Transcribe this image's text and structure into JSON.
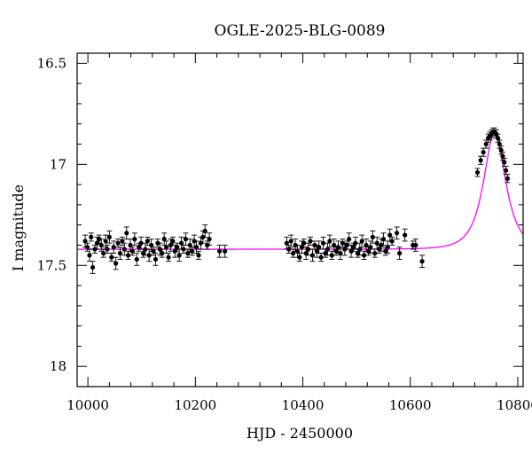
{
  "chart_data": {
    "type": "scatter",
    "title": "OGLE-2025-BLG-0089",
    "xlabel": "HJD - 2450000",
    "ylabel": "I magnitude",
    "xlim": [
      9980,
      10810
    ],
    "ylim": [
      18.1,
      16.45
    ],
    "y_inverted": true,
    "x_ticks": [
      10000,
      10200,
      10400,
      10600,
      10800
    ],
    "y_ticks": [
      16.5,
      17,
      17.5,
      18
    ],
    "y_tick_labels": [
      "16.5",
      "17",
      "17.5",
      "18"
    ],
    "x_minor_step": 40,
    "y_minor_step": 0.1,
    "grid": false,
    "model_color": "#ff00ff",
    "point_color": "#000000",
    "model": {
      "baseline": 17.42,
      "peak_mag": 16.84,
      "t0": 10757,
      "tE": 30
    },
    "series": [
      {
        "points": [
          [
            9995,
            17.38,
            0.03
          ],
          [
            9999,
            17.41,
            0.02
          ],
          [
            10003,
            17.45,
            0.03
          ],
          [
            10006,
            17.36,
            0.02
          ],
          [
            10009,
            17.51,
            0.03
          ],
          [
            10013,
            17.42,
            0.02
          ],
          [
            10017,
            17.39,
            0.03
          ],
          [
            10021,
            17.37,
            0.02
          ],
          [
            10025,
            17.4,
            0.03
          ],
          [
            10029,
            17.44,
            0.02
          ],
          [
            10033,
            17.38,
            0.03
          ],
          [
            10036,
            17.42,
            0.02
          ],
          [
            10040,
            17.36,
            0.03
          ],
          [
            10044,
            17.46,
            0.02
          ],
          [
            10048,
            17.41,
            0.03
          ],
          [
            10052,
            17.49,
            0.03
          ],
          [
            10056,
            17.39,
            0.02
          ],
          [
            10060,
            17.44,
            0.03
          ],
          [
            10064,
            17.38,
            0.02
          ],
          [
            10068,
            17.42,
            0.03
          ],
          [
            10072,
            17.34,
            0.03
          ],
          [
            10075,
            17.45,
            0.02
          ],
          [
            10079,
            17.4,
            0.03
          ],
          [
            10083,
            17.43,
            0.02
          ],
          [
            10087,
            17.37,
            0.03
          ],
          [
            10091,
            17.47,
            0.03
          ],
          [
            10095,
            17.41,
            0.02
          ],
          [
            10099,
            17.39,
            0.03
          ],
          [
            10103,
            17.44,
            0.02
          ],
          [
            10107,
            17.42,
            0.03
          ],
          [
            10111,
            17.38,
            0.02
          ],
          [
            10114,
            17.45,
            0.03
          ],
          [
            10118,
            17.4,
            0.03
          ],
          [
            10122,
            17.43,
            0.02
          ],
          [
            10126,
            17.47,
            0.03
          ],
          [
            10130,
            17.39,
            0.02
          ],
          [
            10134,
            17.42,
            0.03
          ],
          [
            10138,
            17.44,
            0.02
          ],
          [
            10142,
            17.37,
            0.03
          ],
          [
            10146,
            17.41,
            0.03
          ],
          [
            10150,
            17.46,
            0.02
          ],
          [
            10154,
            17.4,
            0.03
          ],
          [
            10158,
            17.38,
            0.02
          ],
          [
            10162,
            17.43,
            0.03
          ],
          [
            10166,
            17.41,
            0.02
          ],
          [
            10170,
            17.45,
            0.03
          ],
          [
            10174,
            17.39,
            0.03
          ],
          [
            10178,
            17.42,
            0.02
          ],
          [
            10182,
            17.37,
            0.03
          ],
          [
            10186,
            17.44,
            0.02
          ],
          [
            10190,
            17.4,
            0.03
          ],
          [
            10194,
            17.43,
            0.02
          ],
          [
            10198,
            17.38,
            0.03
          ],
          [
            10202,
            17.41,
            0.03
          ],
          [
            10206,
            17.45,
            0.02
          ],
          [
            10210,
            17.39,
            0.03
          ],
          [
            10214,
            17.36,
            0.03
          ],
          [
            10218,
            17.33,
            0.03
          ],
          [
            10222,
            17.4,
            0.02
          ],
          [
            10226,
            17.37,
            0.03
          ],
          [
            10245,
            17.43,
            0.03
          ],
          [
            10255,
            17.43,
            0.03
          ],
          [
            10370,
            17.39,
            0.03
          ],
          [
            10374,
            17.42,
            0.02
          ],
          [
            10378,
            17.38,
            0.03
          ],
          [
            10382,
            17.44,
            0.02
          ],
          [
            10386,
            17.4,
            0.03
          ],
          [
            10390,
            17.43,
            0.03
          ],
          [
            10394,
            17.46,
            0.02
          ],
          [
            10398,
            17.41,
            0.03
          ],
          [
            10402,
            17.39,
            0.02
          ],
          [
            10406,
            17.44,
            0.03
          ],
          [
            10410,
            17.42,
            0.03
          ],
          [
            10414,
            17.38,
            0.02
          ],
          [
            10418,
            17.45,
            0.03
          ],
          [
            10422,
            17.4,
            0.02
          ],
          [
            10426,
            17.43,
            0.03
          ],
          [
            10430,
            17.41,
            0.03
          ],
          [
            10434,
            17.46,
            0.02
          ],
          [
            10438,
            17.39,
            0.03
          ],
          [
            10442,
            17.44,
            0.02
          ],
          [
            10446,
            17.42,
            0.03
          ],
          [
            10450,
            17.38,
            0.03
          ],
          [
            10454,
            17.45,
            0.02
          ],
          [
            10458,
            17.4,
            0.03
          ],
          [
            10462,
            17.43,
            0.02
          ],
          [
            10466,
            17.41,
            0.03
          ],
          [
            10470,
            17.44,
            0.03
          ],
          [
            10474,
            17.39,
            0.02
          ],
          [
            10478,
            17.42,
            0.03
          ],
          [
            10482,
            17.4,
            0.02
          ],
          [
            10486,
            17.37,
            0.03
          ],
          [
            10490,
            17.43,
            0.03
          ],
          [
            10494,
            17.41,
            0.02
          ],
          [
            10498,
            17.39,
            0.03
          ],
          [
            10502,
            17.44,
            0.02
          ],
          [
            10506,
            17.42,
            0.03
          ],
          [
            10510,
            17.38,
            0.03
          ],
          [
            10514,
            17.45,
            0.02
          ],
          [
            10518,
            17.4,
            0.03
          ],
          [
            10522,
            17.43,
            0.02
          ],
          [
            10526,
            17.41,
            0.03
          ],
          [
            10530,
            17.36,
            0.03
          ],
          [
            10534,
            17.44,
            0.02
          ],
          [
            10538,
            17.39,
            0.03
          ],
          [
            10542,
            17.42,
            0.02
          ],
          [
            10546,
            17.4,
            0.03
          ],
          [
            10550,
            17.37,
            0.03
          ],
          [
            10554,
            17.43,
            0.02
          ],
          [
            10558,
            17.41,
            0.03
          ],
          [
            10562,
            17.35,
            0.03
          ],
          [
            10566,
            17.38,
            0.02
          ],
          [
            10575,
            17.34,
            0.03
          ],
          [
            10580,
            17.44,
            0.03
          ],
          [
            10590,
            17.35,
            0.03
          ],
          [
            10605,
            17.4,
            0.02
          ],
          [
            10610,
            17.4,
            0.03
          ],
          [
            10622,
            17.48,
            0.03
          ],
          [
            10725,
            17.04,
            0.02
          ],
          [
            10731,
            16.98,
            0.02
          ],
          [
            10736,
            16.94,
            0.02
          ],
          [
            10741,
            16.9,
            0.02
          ],
          [
            10745,
            16.87,
            0.02
          ],
          [
            10748,
            16.86,
            0.02
          ],
          [
            10751,
            16.85,
            0.02
          ],
          [
            10754,
            16.84,
            0.02
          ],
          [
            10757,
            16.84,
            0.02
          ],
          [
            10760,
            16.85,
            0.02
          ],
          [
            10763,
            16.87,
            0.02
          ],
          [
            10766,
            16.9,
            0.02
          ],
          [
            10769,
            16.93,
            0.02
          ],
          [
            10772,
            16.96,
            0.02
          ],
          [
            10775,
            16.99,
            0.02
          ],
          [
            10778,
            17.03,
            0.02
          ],
          [
            10781,
            17.07,
            0.02
          ]
        ]
      }
    ]
  }
}
